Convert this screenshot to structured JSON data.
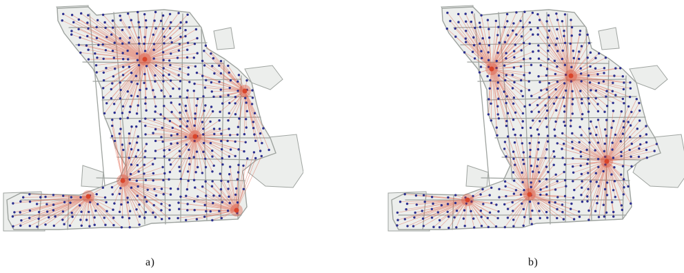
{
  "figure": {
    "panels": [
      {
        "id": "a",
        "caption": "a)",
        "facilities": 6,
        "colors": {
          "block": "#eceeec",
          "street": "#9ea39f",
          "link": "#e1664f",
          "hub": "#d9452b",
          "node": "#2b2f8f"
        }
      },
      {
        "id": "b",
        "caption": "b)",
        "facilities": 5,
        "colors": {
          "block": "#eceeec",
          "street": "#9ea39f",
          "link": "#e1664f",
          "hub": "#d9452b",
          "node": "#2b2f8f"
        }
      }
    ]
  }
}
